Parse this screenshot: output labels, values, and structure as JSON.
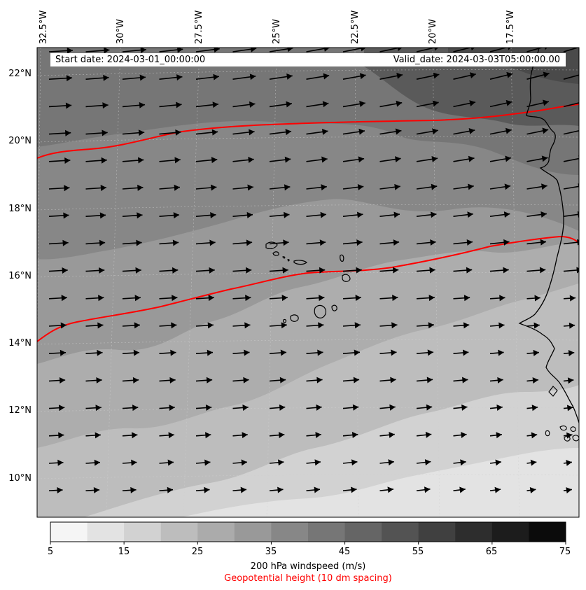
{
  "map": {
    "header": {
      "start_date": "Start date: 2024-03-01_00:00:00",
      "valid_date": "Valid_date: 2024-03-03T05:00:00.00"
    },
    "lon_labels": [
      "32.5°W",
      "30°W",
      "27.5°W",
      "25°W",
      "22.5°W",
      "20°W",
      "17.5°W"
    ],
    "lat_labels": [
      "22°N",
      "20°N",
      "18°N",
      "16°N",
      "14°N",
      "12°N",
      "10°N"
    ],
    "contour_color": "#ff0000",
    "coastline_color": "#000000"
  },
  "colorbar": {
    "ticks": [
      "5",
      "15",
      "25",
      "35",
      "45",
      "55",
      "65",
      "75"
    ],
    "colors": [
      "#f5f5f5",
      "#e3e3e3",
      "#d2d2d2",
      "#bdbdbd",
      "#ababab",
      "#999999",
      "#878787",
      "#767676",
      "#656565",
      "#535353",
      "#404040",
      "#2d2d2d",
      "#1c1c1c",
      "#0b0b0b"
    ],
    "title": "200 hPa windspeed (m/s)",
    "subtitle": "Geopotential height (10 dm spacing)",
    "subtitle_color": "#ff0000"
  }
}
